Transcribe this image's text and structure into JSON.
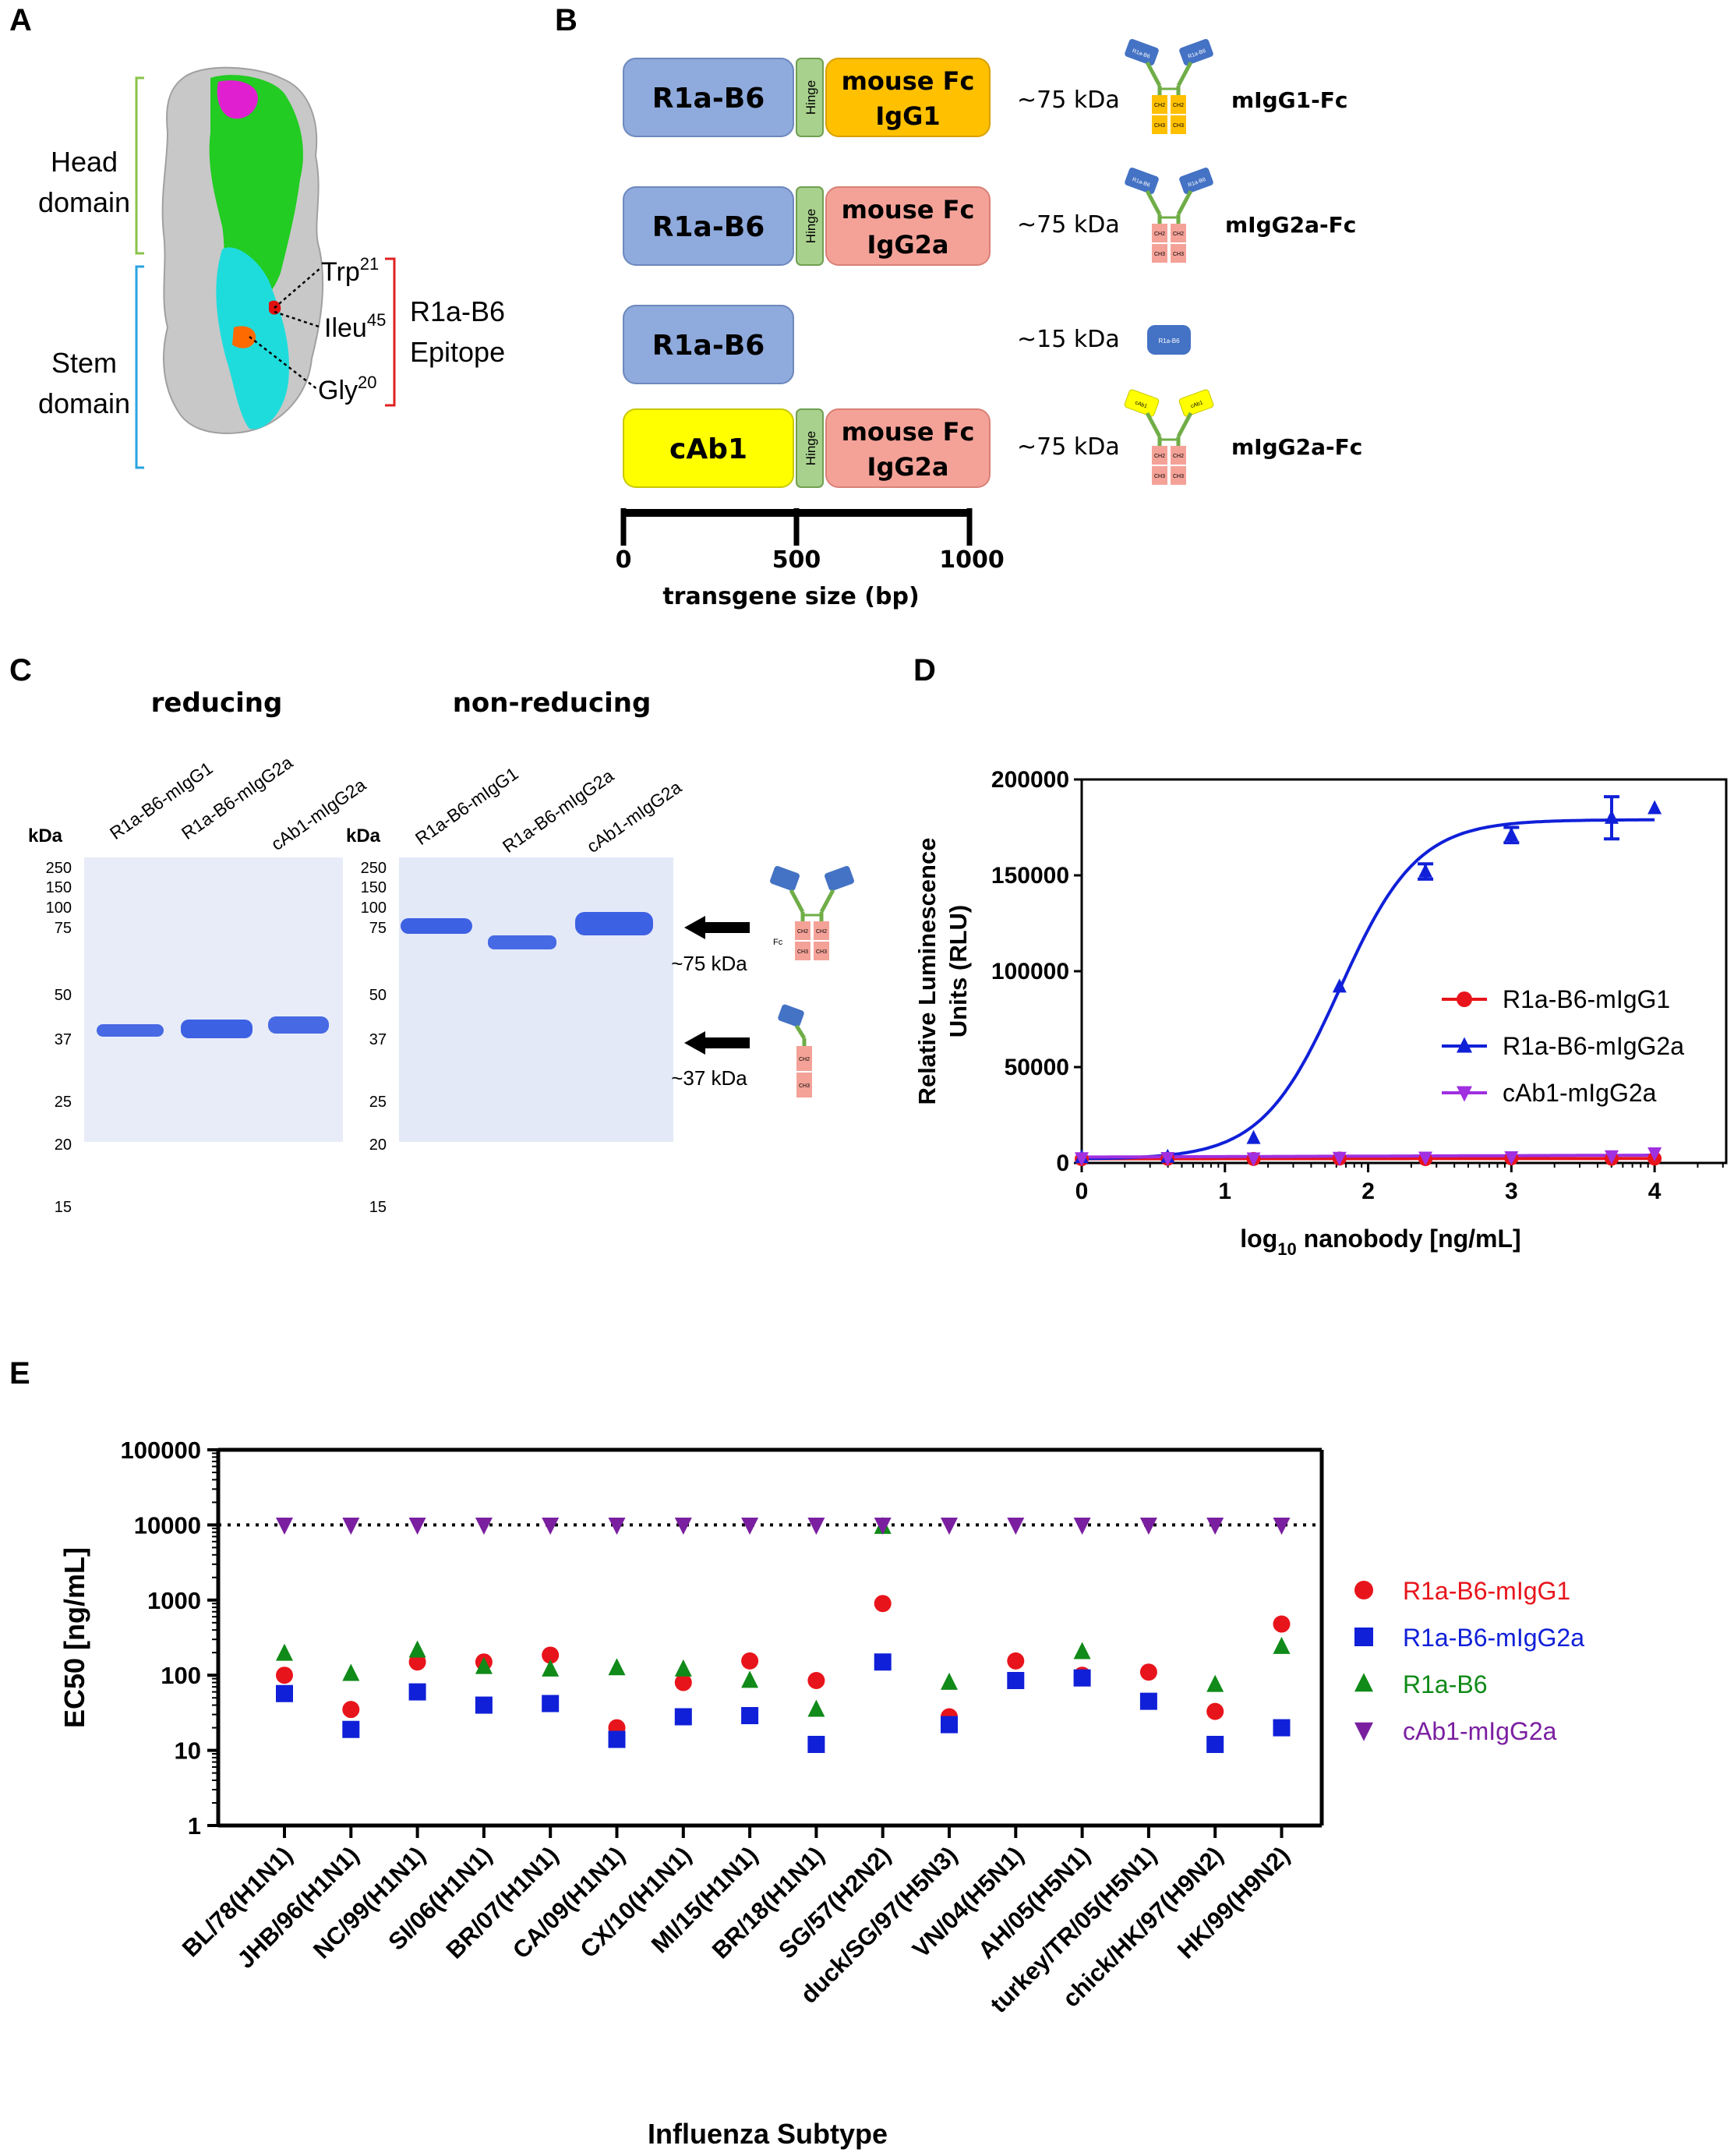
{
  "panels": {
    "A": "A",
    "B": "B",
    "C": "C",
    "D": "D",
    "E": "E"
  },
  "panel_a": {
    "head_domain": [
      "Head",
      "domain"
    ],
    "stem_domain": [
      "Stem",
      "domain"
    ],
    "trp": "Trp",
    "trp_sup": "21",
    "ileu": "Ileu",
    "ileu_sup": "45",
    "gly": "Gly",
    "gly_sup": "20",
    "epitope": [
      "R1a-B6",
      "Epitope"
    ]
  },
  "panel_b": {
    "constructs": [
      {
        "vhh": "R1a-B6",
        "hinge": "Hinge",
        "fc": [
          "mouse Fc",
          "IgG1"
        ],
        "size": "~75 kDa",
        "name": "mIgG1-Fc",
        "vhh_color": "#8faadc",
        "fc_color": "#ffc000"
      },
      {
        "vhh": "R1a-B6",
        "hinge": "Hinge",
        "fc": [
          "mouse Fc",
          "IgG2a"
        ],
        "size": "~75 kDa",
        "name": "mIgG2a-Fc",
        "vhh_color": "#8faadc",
        "fc_color": "#f4a298"
      },
      {
        "vhh": "R1a-B6",
        "size": "~15 kDa",
        "vhh_color": "#8faadc",
        "icon_label": "R1a-B6"
      },
      {
        "vhh": "cAb1",
        "hinge": "Hinge",
        "fc": [
          "mouse Fc",
          "IgG2a"
        ],
        "size": "~75 kDa",
        "name": "mIgG2a-Fc",
        "vhh_color": "#ffff00",
        "fc_color": "#f4a298"
      }
    ],
    "icon_arm_labels": [
      "R1a-B6",
      "R1a-B6",
      "cAb1"
    ],
    "icon_ch_labels": [
      "CH2",
      "CH3"
    ],
    "scale_ticks": [
      "0",
      "500",
      "1000"
    ],
    "scale_label": "transgene size (bp)"
  },
  "panel_c": {
    "reducing": "reducing",
    "non_reducing": "non-reducing",
    "kda": "kDa",
    "lanes": [
      "R1a-B6-mIgG1",
      "R1a-B6-mIgG2a",
      "cAb1-mIgG2a"
    ],
    "markers": [
      "250",
      "150",
      "100",
      "75",
      "50",
      "37",
      "25",
      "20",
      "15"
    ],
    "arrow_75": "~75 kDa",
    "arrow_37": "~37 kDa",
    "fc_label": "Fc"
  },
  "chart_data": [
    {
      "type": "line",
      "panel": "D",
      "title": "",
      "xlabel": "log10 nanobody [ng/mL]",
      "ylabel": "Relative Luminescence Units (RLU)",
      "xlim": [
        0,
        4.5
      ],
      "ylim": [
        0,
        200000
      ],
      "xticks": [
        0,
        1,
        2,
        3,
        4
      ],
      "yticks": [
        0,
        50000,
        100000,
        150000,
        200000
      ],
      "legend_position": "center-right",
      "fit": {
        "bottom": 2000,
        "top": 179000,
        "log_ec50": 1.8,
        "hill": 1.6
      },
      "series": [
        {
          "name": "R1a-B6-mIgG1",
          "color": "#e8141b",
          "marker": "circle",
          "x": [
            0,
            0.6,
            1.2,
            1.8,
            2.4,
            3.0,
            3.7,
            4.0
          ],
          "y": [
            2000,
            2200,
            2100,
            2300,
            2000,
            2400,
            2200,
            2300
          ]
        },
        {
          "name": "R1a-B6-mIgG2a",
          "color": "#1020d8",
          "marker": "triangle-up",
          "x": [
            0,
            0.6,
            1.2,
            1.8,
            2.4,
            3.0,
            3.7,
            4.0
          ],
          "y": [
            3000,
            3200,
            13000,
            92000,
            152000,
            171000,
            180000,
            185000
          ],
          "error": [
            0,
            0,
            0,
            0,
            4000,
            4000,
            11000,
            0
          ]
        },
        {
          "name": "cAb1-mIgG2a",
          "color": "#a030e0",
          "marker": "triangle-down",
          "x": [
            0,
            0.6,
            1.2,
            1.8,
            2.4,
            3.0,
            3.7,
            4.0
          ],
          "y": [
            2500,
            2600,
            2400,
            2700,
            2800,
            3000,
            3500,
            5000
          ]
        }
      ]
    },
    {
      "type": "scatter",
      "panel": "E",
      "title": "",
      "xlabel": "Influenza Subtype",
      "ylabel": "EC50 [ng/mL]",
      "yscale": "log",
      "ylim": [
        1,
        100000
      ],
      "yticks": [
        1,
        10,
        100,
        1000,
        10000,
        100000
      ],
      "reference_line": 10000,
      "legend_position": "right",
      "categories": [
        "BL/78(H1N1)",
        "JHB/96(H1N1)",
        "NC/99(H1N1)",
        "SI/06(H1N1)",
        "BR/07(H1N1)",
        "CA/09(H1N1)",
        "CX/10(H1N1)",
        "MI/15(H1N1)",
        "BR/18(H1N1)",
        "SG/57(H2N2)",
        "duck/SG/97(H5N3)",
        "VN/04(H5N1)",
        "AH/05(H5N1)",
        "turkey/TR/05(H5N1)",
        "chick/HK/97(H9N2)",
        "HK/99(H9N2)"
      ],
      "series": [
        {
          "name": "R1a-B6-mIgG1",
          "color": "#e8141b",
          "marker": "circle",
          "values": [
            100,
            35,
            150,
            150,
            185,
            20,
            80,
            155,
            85,
            900,
            28,
            155,
            100,
            110,
            33,
            480
          ]
        },
        {
          "name": "R1a-B6-mIgG2a",
          "color": "#1020d8",
          "marker": "square",
          "values": [
            57,
            19,
            60,
            40,
            42,
            14,
            28,
            29,
            12,
            150,
            22,
            85,
            92,
            45,
            12,
            20
          ]
        },
        {
          "name": "R1a-B6",
          "color": "#108a18",
          "marker": "triangle-up",
          "values": [
            195,
            105,
            215,
            130,
            120,
            125,
            120,
            85,
            35,
            9500,
            80,
            null,
            205,
            null,
            75,
            240
          ]
        },
        {
          "name": "cAb1-mIgG2a",
          "color": "#7a1fa0",
          "marker": "triangle-down",
          "values": [
            10000,
            10000,
            10000,
            10000,
            10000,
            10000,
            10000,
            10000,
            10000,
            10000,
            10000,
            10000,
            10000,
            10000,
            10000,
            10000
          ]
        }
      ]
    }
  ]
}
